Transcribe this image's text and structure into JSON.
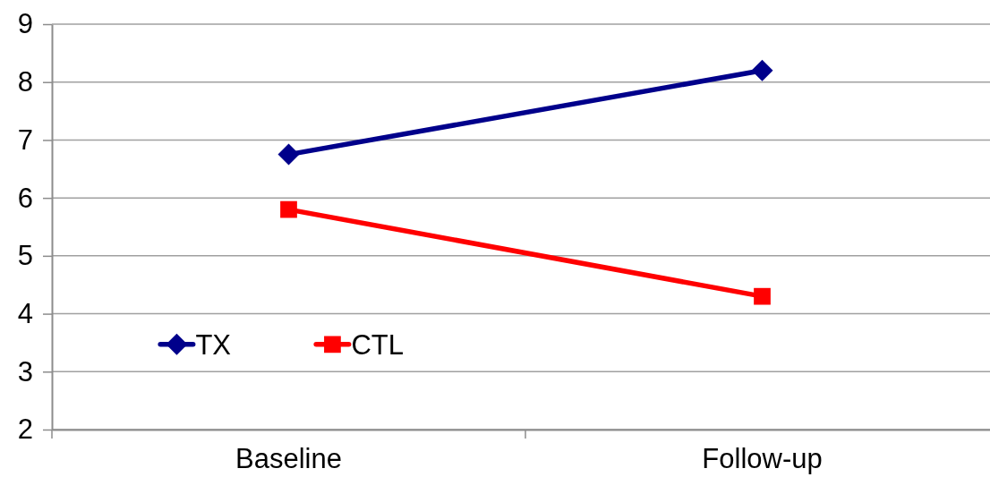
{
  "chart_data": {
    "type": "line",
    "categories": [
      "Baseline",
      "Follow-up"
    ],
    "series": [
      {
        "name": "TX",
        "color": "#00008b",
        "values": [
          6.75,
          8.2
        ],
        "marker": "diamond"
      },
      {
        "name": "CTL",
        "color": "#ff0000",
        "values": [
          5.8,
          4.3
        ],
        "marker": "square"
      }
    ],
    "ylim": [
      2,
      9
    ],
    "yticks": [
      2,
      3,
      4,
      5,
      6,
      7,
      8,
      9
    ],
    "grid": "y",
    "legend": "bottom left",
    "line_style": "solid"
  }
}
